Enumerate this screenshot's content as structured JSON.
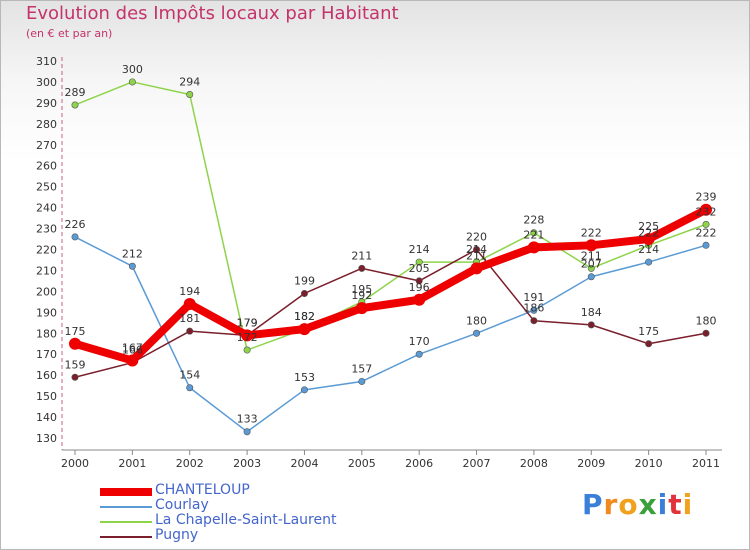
{
  "chart_data": {
    "type": "line",
    "title": "Evolution des Impôts locaux par Habitant",
    "subtitle": "(en € et par an)",
    "x": [
      "2000",
      "2001",
      "2002",
      "2003",
      "2004",
      "2005",
      "2006",
      "2007",
      "2008",
      "2009",
      "2010",
      "2011"
    ],
    "ylim": [
      130,
      310
    ],
    "yticks": [
      130,
      140,
      150,
      160,
      170,
      180,
      190,
      200,
      210,
      220,
      230,
      240,
      250,
      260,
      270,
      280,
      290,
      300,
      310
    ],
    "grid": false,
    "legend_position": "bottom-left",
    "series": [
      {
        "name": "CHANTELOUP",
        "color": "#ee0000",
        "values": [
          175,
          167,
          194,
          179,
          182,
          192,
          196,
          211,
          221,
          222,
          225,
          239
        ],
        "labels": [
          "175",
          "167",
          "194",
          "179",
          "182",
          "192",
          "196",
          "211",
          "221",
          "222",
          "225",
          "239"
        ]
      },
      {
        "name": "Courlay",
        "color": "#5b9bd5",
        "values": [
          226,
          212,
          154,
          133,
          153,
          157,
          170,
          180,
          191,
          207,
          214,
          222
        ],
        "labels": [
          "226",
          "212",
          "154",
          "133",
          "153",
          "157",
          "170",
          "180",
          "191",
          "207",
          "214",
          "222"
        ]
      },
      {
        "name": "La Chapelle-Saint-Laurent",
        "color": "#8ed44a",
        "values": [
          289,
          300,
          294,
          172,
          182,
          195,
          214,
          214,
          228,
          211,
          222,
          232
        ],
        "labels": [
          "289",
          "300",
          "294",
          "172",
          "182",
          "195",
          "214",
          "214",
          "228",
          "211",
          "222",
          "232"
        ]
      },
      {
        "name": "Pugny",
        "color": "#7a1f2b",
        "values": [
          159,
          166,
          181,
          179,
          199,
          211,
          205,
          220,
          186,
          184,
          175,
          180
        ],
        "labels": [
          "159",
          "166",
          "181",
          "179",
          "199",
          "211",
          "205",
          "220",
          "186",
          "184",
          "175",
          "180"
        ]
      }
    ]
  },
  "brand": {
    "text": "Proxiti",
    "letter_colors": [
      "#3a7fd9",
      "#f08a1e",
      "#f0a11e",
      "#3aa03a",
      "#3a7fd9",
      "#e0333c",
      "#f0a11e"
    ]
  }
}
